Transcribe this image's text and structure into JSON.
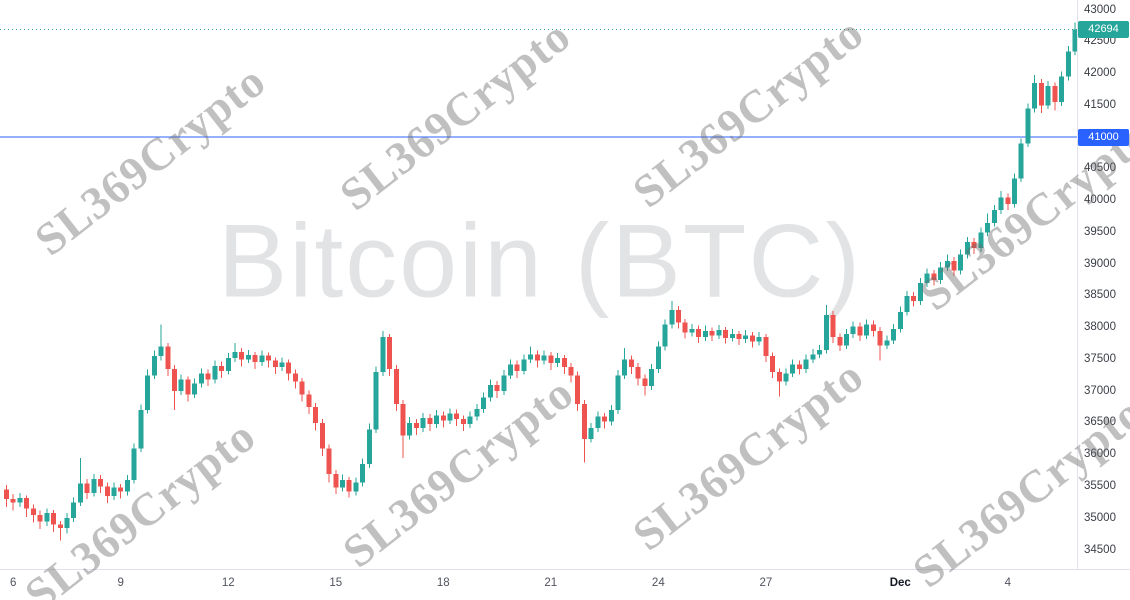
{
  "chart_data": {
    "type": "candlestick",
    "title": "Bitcoin (BTC)",
    "watermark_text": "SL369Crypto",
    "up_color": "#26a69a",
    "down_color": "#ef5350",
    "legend_position": "none",
    "grid": false,
    "price_axis": {
      "labels": [
        43000,
        42500,
        42000,
        41500,
        41000,
        40500,
        40000,
        39500,
        39000,
        38500,
        38000,
        37500,
        37000,
        36500,
        36000,
        35500,
        35000,
        34500
      ]
    },
    "x_ticks": [
      {
        "label": "6",
        "index": 1,
        "bold": false
      },
      {
        "label": "9",
        "index": 17,
        "bold": false
      },
      {
        "label": "12",
        "index": 33,
        "bold": false
      },
      {
        "label": "15",
        "index": 49,
        "bold": false
      },
      {
        "label": "18",
        "index": 65,
        "bold": false
      },
      {
        "label": "21",
        "index": 81,
        "bold": false
      },
      {
        "label": "24",
        "index": 97,
        "bold": false
      },
      {
        "label": "27",
        "index": 113,
        "bold": false
      },
      {
        "label": "Dec",
        "index": 133,
        "bold": true
      },
      {
        "label": "4",
        "index": 149,
        "bold": false
      }
    ],
    "last_price_line": {
      "price": 42694,
      "label": "42694",
      "color": "#26a69a",
      "style": "dotted"
    },
    "alert_line": {
      "price": 41000,
      "label": "41000",
      "color": "#2962ff",
      "style": "solid"
    },
    "ylim": [
      34500,
      43000
    ],
    "candles_ohlc": [
      [
        35450,
        35520,
        35180,
        35300
      ],
      [
        35300,
        35380,
        35120,
        35250
      ],
      [
        35250,
        35400,
        35180,
        35320
      ],
      [
        35320,
        35360,
        35020,
        35150
      ],
      [
        35150,
        35220,
        34930,
        35050
      ],
      [
        35050,
        35120,
        34830,
        34950
      ],
      [
        34950,
        35150,
        34880,
        35080
      ],
      [
        35080,
        35130,
        34780,
        34900
      ],
      [
        34900,
        34960,
        34650,
        34850
      ],
      [
        34850,
        35080,
        34760,
        35000
      ],
      [
        35000,
        35330,
        34940,
        35250
      ],
      [
        35250,
        35950,
        35190,
        35550
      ],
      [
        35550,
        35620,
        35300,
        35400
      ],
      [
        35400,
        35700,
        35340,
        35620
      ],
      [
        35620,
        35680,
        35400,
        35500
      ],
      [
        35500,
        35560,
        35240,
        35350
      ],
      [
        35350,
        35560,
        35290,
        35480
      ],
      [
        35480,
        35540,
        35310,
        35420
      ],
      [
        35420,
        35680,
        35360,
        35600
      ],
      [
        35600,
        36180,
        35550,
        36100
      ],
      [
        36100,
        36790,
        36040,
        36700
      ],
      [
        36700,
        37340,
        36650,
        37250
      ],
      [
        37250,
        37640,
        37190,
        37550
      ],
      [
        37550,
        38050,
        37480,
        37700
      ],
      [
        37700,
        37760,
        37240,
        37350
      ],
      [
        37350,
        37410,
        36700,
        37000
      ],
      [
        37000,
        37260,
        36940,
        37180
      ],
      [
        37180,
        37230,
        36840,
        36950
      ],
      [
        36950,
        37200,
        36890,
        37120
      ],
      [
        37120,
        37360,
        37060,
        37280
      ],
      [
        37280,
        37340,
        37080,
        37180
      ],
      [
        37180,
        37480,
        37120,
        37400
      ],
      [
        37400,
        37470,
        37210,
        37320
      ],
      [
        37320,
        37600,
        37260,
        37520
      ],
      [
        37520,
        37760,
        37460,
        37620
      ],
      [
        37620,
        37680,
        37390,
        37500
      ],
      [
        37500,
        37650,
        37440,
        37570
      ],
      [
        37570,
        37620,
        37350,
        37460
      ],
      [
        37460,
        37640,
        37400,
        37560
      ],
      [
        37560,
        37610,
        37370,
        37480
      ],
      [
        37480,
        37530,
        37270,
        37380
      ],
      [
        37380,
        37530,
        37320,
        37450
      ],
      [
        37450,
        37500,
        37170,
        37280
      ],
      [
        37280,
        37340,
        37040,
        37150
      ],
      [
        37150,
        37210,
        36840,
        36950
      ],
      [
        36950,
        37010,
        36640,
        36750
      ],
      [
        36750,
        36810,
        36380,
        36500
      ],
      [
        36500,
        36560,
        35980,
        36100
      ],
      [
        36100,
        36160,
        35560,
        35700
      ],
      [
        35700,
        35760,
        35380,
        35480
      ],
      [
        35480,
        35690,
        35420,
        35600
      ],
      [
        35600,
        35650,
        35330,
        35420
      ],
      [
        35420,
        35640,
        35360,
        35560
      ],
      [
        35560,
        35940,
        35500,
        35850
      ],
      [
        35850,
        36490,
        35790,
        36400
      ],
      [
        36400,
        37390,
        36340,
        37300
      ],
      [
        37300,
        37950,
        37240,
        37850
      ],
      [
        37850,
        37900,
        37240,
        37350
      ],
      [
        37350,
        37410,
        36690,
        36800
      ],
      [
        36800,
        36860,
        35950,
        36300
      ],
      [
        36300,
        36590,
        36240,
        36500
      ],
      [
        36500,
        36560,
        36310,
        36420
      ],
      [
        36420,
        36660,
        36360,
        36580
      ],
      [
        36580,
        36640,
        36370,
        36480
      ],
      [
        36480,
        36700,
        36420,
        36620
      ],
      [
        36620,
        36680,
        36430,
        36540
      ],
      [
        36540,
        36730,
        36480,
        36650
      ],
      [
        36650,
        36710,
        36450,
        36560
      ],
      [
        36560,
        36620,
        36370,
        36480
      ],
      [
        36480,
        36680,
        36420,
        36600
      ],
      [
        36600,
        36800,
        36540,
        36720
      ],
      [
        36720,
        36980,
        36660,
        36900
      ],
      [
        36900,
        37180,
        36840,
        37100
      ],
      [
        37100,
        37160,
        36890,
        37000
      ],
      [
        37000,
        37330,
        36940,
        37250
      ],
      [
        37250,
        37500,
        37190,
        37420
      ],
      [
        37420,
        37480,
        37210,
        37320
      ],
      [
        37320,
        37580,
        37260,
        37500
      ],
      [
        37500,
        37700,
        37440,
        37580
      ],
      [
        37580,
        37640,
        37370,
        37480
      ],
      [
        37480,
        37640,
        37420,
        37560
      ],
      [
        37560,
        37620,
        37330,
        37440
      ],
      [
        37440,
        37600,
        37380,
        37520
      ],
      [
        37520,
        37570,
        37270,
        37380
      ],
      [
        37380,
        37440,
        37140,
        37250
      ],
      [
        37250,
        37310,
        36690,
        36800
      ],
      [
        36800,
        36860,
        35880,
        36250
      ],
      [
        36250,
        36500,
        36190,
        36420
      ],
      [
        36420,
        36680,
        36360,
        36600
      ],
      [
        36600,
        36660,
        36410,
        36520
      ],
      [
        36520,
        36780,
        36460,
        36700
      ],
      [
        36700,
        37330,
        36640,
        37250
      ],
      [
        37250,
        37680,
        37190,
        37500
      ],
      [
        37500,
        37560,
        37270,
        37380
      ],
      [
        37380,
        37440,
        37090,
        37200
      ],
      [
        37200,
        37260,
        36930,
        37080
      ],
      [
        37080,
        37430,
        37020,
        37350
      ],
      [
        37350,
        37780,
        37290,
        37700
      ],
      [
        37700,
        38130,
        37640,
        38050
      ],
      [
        38050,
        38420,
        37990,
        38280
      ],
      [
        38280,
        38340,
        37990,
        38080
      ],
      [
        38080,
        38140,
        37830,
        37920
      ],
      [
        37920,
        38060,
        37860,
        37980
      ],
      [
        37980,
        38030,
        37760,
        37850
      ],
      [
        37850,
        38030,
        37790,
        37950
      ],
      [
        37950,
        38000,
        37790,
        37880
      ],
      [
        37880,
        38040,
        37820,
        37960
      ],
      [
        37960,
        38010,
        37750,
        37840
      ],
      [
        37840,
        37980,
        37780,
        37900
      ],
      [
        37900,
        37950,
        37730,
        37820
      ],
      [
        37820,
        37960,
        37760,
        37880
      ],
      [
        37880,
        37930,
        37690,
        37780
      ],
      [
        37780,
        37930,
        37720,
        37850
      ],
      [
        37850,
        37900,
        37460,
        37550
      ],
      [
        37550,
        37610,
        37210,
        37300
      ],
      [
        37300,
        37360,
        36920,
        37150
      ],
      [
        37150,
        37360,
        37090,
        37280
      ],
      [
        37280,
        37500,
        37220,
        37420
      ],
      [
        37420,
        37480,
        37260,
        37350
      ],
      [
        37350,
        37580,
        37290,
        37500
      ],
      [
        37500,
        37660,
        37440,
        37580
      ],
      [
        37580,
        37730,
        37520,
        37650
      ],
      [
        37650,
        38360,
        37590,
        38200
      ],
      [
        38200,
        38260,
        37760,
        37850
      ],
      [
        37850,
        37910,
        37630,
        37720
      ],
      [
        37720,
        37980,
        37660,
        37900
      ],
      [
        37900,
        38100,
        37840,
        38020
      ],
      [
        38020,
        38080,
        37790,
        37880
      ],
      [
        37880,
        38130,
        37820,
        38050
      ],
      [
        38050,
        38110,
        37860,
        37950
      ],
      [
        37950,
        38010,
        37480,
        37720
      ],
      [
        37720,
        37880,
        37660,
        37800
      ],
      [
        37800,
        38060,
        37740,
        37980
      ],
      [
        37980,
        38330,
        37920,
        38250
      ],
      [
        38250,
        38580,
        38190,
        38500
      ],
      [
        38500,
        38560,
        38330,
        38420
      ],
      [
        38420,
        38780,
        38360,
        38700
      ],
      [
        38700,
        38930,
        38640,
        38850
      ],
      [
        38850,
        38910,
        38660,
        38750
      ],
      [
        38750,
        39030,
        38690,
        38950
      ],
      [
        38950,
        39150,
        38890,
        39050
      ],
      [
        39050,
        39110,
        38810,
        38900
      ],
      [
        38900,
        39230,
        38840,
        39150
      ],
      [
        39150,
        39430,
        39090,
        39350
      ],
      [
        39350,
        39410,
        39160,
        39250
      ],
      [
        39250,
        39580,
        39190,
        39500
      ],
      [
        39500,
        39800,
        39440,
        39650
      ],
      [
        39650,
        39930,
        39590,
        39850
      ],
      [
        39850,
        40150,
        39790,
        40050
      ],
      [
        40050,
        40110,
        39850,
        39950
      ],
      [
        39950,
        40430,
        39890,
        40350
      ],
      [
        40350,
        40980,
        40290,
        40900
      ],
      [
        40900,
        41530,
        40840,
        41450
      ],
      [
        41450,
        41980,
        41390,
        41850
      ],
      [
        41850,
        41910,
        41380,
        41500
      ],
      [
        41500,
        41880,
        41440,
        41800
      ],
      [
        41800,
        41860,
        41420,
        41550
      ],
      [
        41550,
        42030,
        41490,
        41950
      ],
      [
        41950,
        42430,
        41890,
        42350
      ],
      [
        42350,
        42800,
        42290,
        42694
      ]
    ]
  }
}
